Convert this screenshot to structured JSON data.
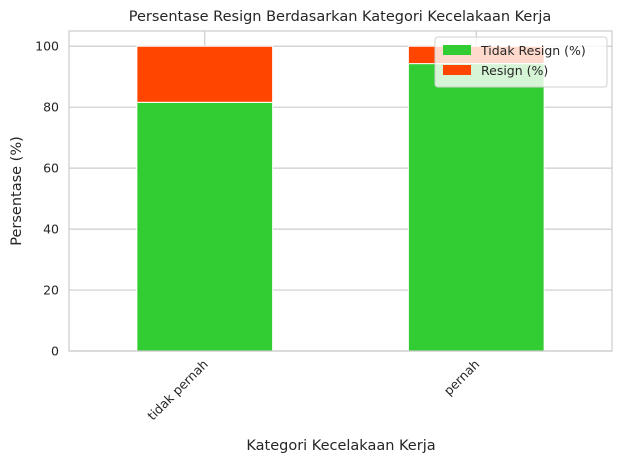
{
  "chart_data": {
    "type": "bar",
    "stacked": true,
    "title": "Persentase Resign Berdasarkan Kategori Kecelakaan Kerja",
    "xlabel": "Kategori Kecelakaan Kerja",
    "ylabel": "Persentase (%)",
    "categories": [
      "tidak pernah",
      "pernah"
    ],
    "series": [
      {
        "name": "Tidak Resign (%)",
        "values": [
          81.6,
          94.3
        ],
        "color": "#32cd32"
      },
      {
        "name": "Resign (%)",
        "values": [
          18.4,
          5.7
        ],
        "color": "#ff4500"
      }
    ],
    "yticks": [
      0,
      20,
      40,
      60,
      80,
      100
    ],
    "ylim": [
      0,
      105
    ],
    "grid": true,
    "legend_position": "top-right"
  }
}
